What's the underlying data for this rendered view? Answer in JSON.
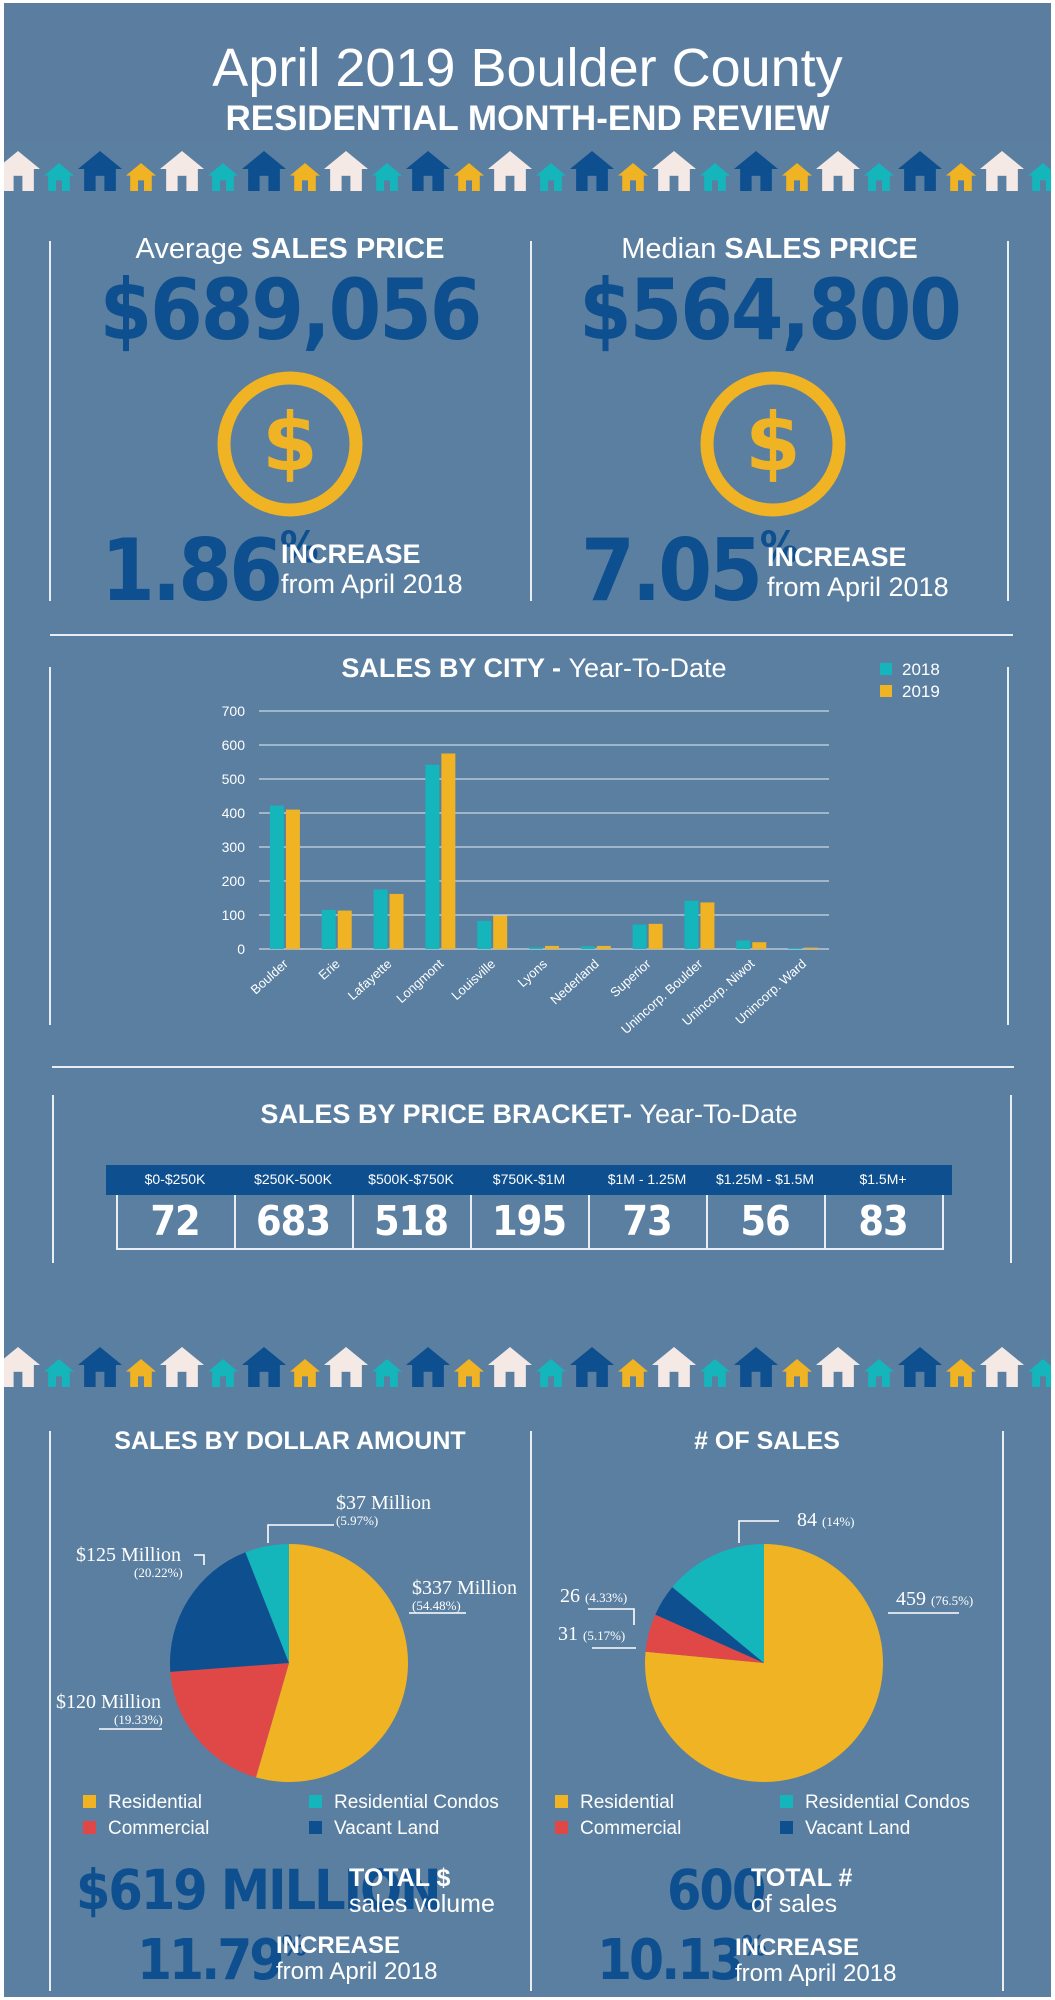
{
  "header": {
    "title": "April 2019 Boulder County",
    "subtitle": "RESIDENTIAL MONTH-END REVIEW"
  },
  "colors": {
    "background": "#5a7fa1",
    "navy": "#0d4f8f",
    "gold": "#f0b323",
    "teal": "#14b5bb",
    "red": "#e04848",
    "cream": "#f5e9e6"
  },
  "avg": {
    "label_light": "Average ",
    "label_bold": "SALES PRICE",
    "value": "$689,056",
    "pct": "1.86",
    "pct_sign": "%",
    "inc_word": "INCREASE",
    "inc_from": "from April 2018",
    "icon": "dollar-coin-icon"
  },
  "median": {
    "label_light": "Median ",
    "label_bold": "SALES PRICE",
    "value": "$564,800",
    "pct": "7.05",
    "pct_sign": "%",
    "inc_word": "INCREASE",
    "inc_from": "from April 2018",
    "icon": "dollar-coin-icon"
  },
  "city": {
    "title_bold": "SALES BY CITY - ",
    "title_light": "Year-To-Date"
  },
  "chart_data": [
    {
      "type": "bar",
      "title": "SALES BY CITY - Year-To-Date",
      "categories": [
        "Boulder",
        "Erie",
        "Lafayette",
        "Longmont",
        "Louisville",
        "Lyons",
        "Nederland",
        "Superior",
        "Unincorp. Boulder",
        "Unincorp. Niwot",
        "Unincorp. Ward"
      ],
      "series": [
        {
          "name": "2018",
          "color": "#14b5bb",
          "values": [
            422,
            115,
            175,
            542,
            83,
            5,
            8,
            72,
            142,
            25,
            3
          ]
        },
        {
          "name": "2019",
          "color": "#f0b323",
          "values": [
            410,
            113,
            162,
            575,
            98,
            9,
            9,
            74,
            137,
            20,
            4
          ]
        }
      ],
      "ylim": [
        0,
        700
      ],
      "yticks": [
        0,
        100,
        200,
        300,
        400,
        500,
        600,
        700
      ],
      "xlabel": "",
      "ylabel": "",
      "legend": "top-right"
    },
    {
      "type": "table",
      "title": "SALES BY PRICE BRACKET- Year-To-Date",
      "columns": [
        "$0-$250K",
        "$250K-500K",
        "$500K-$750K",
        "$750K-$1M",
        "$1M - 1.25M",
        "$1.25M - $1.5M",
        "$1.5M+"
      ],
      "values": [
        "72",
        "683",
        "518",
        "195",
        "73",
        "56",
        "83"
      ]
    },
    {
      "type": "pie",
      "title": "SALES BY DOLLAR AMOUNT",
      "slices": [
        {
          "label": "Residential",
          "value": 54.48,
          "color": "#f0b323",
          "amount": "$337 Million",
          "pct_label": "(54.48%)"
        },
        {
          "label": "Commercial",
          "value": 19.33,
          "color": "#e04848",
          "amount": "$120 Million",
          "pct_label": "(19.33%)"
        },
        {
          "label": "Vacant Land",
          "value": 20.22,
          "color": "#0d4f8f",
          "amount": "$125 Million",
          "pct_label": "(20.22%)"
        },
        {
          "label": "Residential Condos",
          "value": 5.97,
          "color": "#14b5bb",
          "amount": "$37 Million",
          "pct_label": "(5.97%)"
        }
      ]
    },
    {
      "type": "pie",
      "title": "# OF SALES",
      "slices": [
        {
          "label": "Residential",
          "value": 459,
          "color": "#f0b323",
          "amount": "459",
          "pct_label": "(76.5%)"
        },
        {
          "label": "Commercial",
          "value": 31,
          "color": "#e04848",
          "amount": "31",
          "pct_label": "(5.17%)"
        },
        {
          "label": "Vacant Land",
          "value": 26,
          "color": "#0d4f8f",
          "amount": "26",
          "pct_label": "(4.33%)"
        },
        {
          "label": "Residential Condos",
          "value": 84,
          "color": "#14b5bb",
          "amount": "84",
          "pct_label": "(14%)"
        }
      ]
    }
  ],
  "bracket": {
    "title_bold": "SALES BY PRICE BRACKET- ",
    "title_light": "Year-To-Date"
  },
  "dollar": {
    "title": "SALES BY DOLLAR AMOUNT",
    "legend": [
      "Residential",
      "Residential Condos",
      "Commercial",
      "Vacant Land"
    ],
    "total_value": "$619 MILLION",
    "total_w1": "TOTAL $",
    "total_w2": "sales volume",
    "pct": "11.79",
    "pct_sign": "%",
    "inc_word": "INCREASE",
    "inc_from": "from April 2018"
  },
  "count": {
    "title": "# OF SALES",
    "legend": [
      "Residential",
      "Residential Condos",
      "Commercial",
      "Vacant Land"
    ],
    "total_value": "600",
    "total_w1": "TOTAL #",
    "total_w2": "of sales",
    "pct": "10.13",
    "pct_sign": "%",
    "inc_word": "INCREASE",
    "inc_from": "from April 2018"
  }
}
